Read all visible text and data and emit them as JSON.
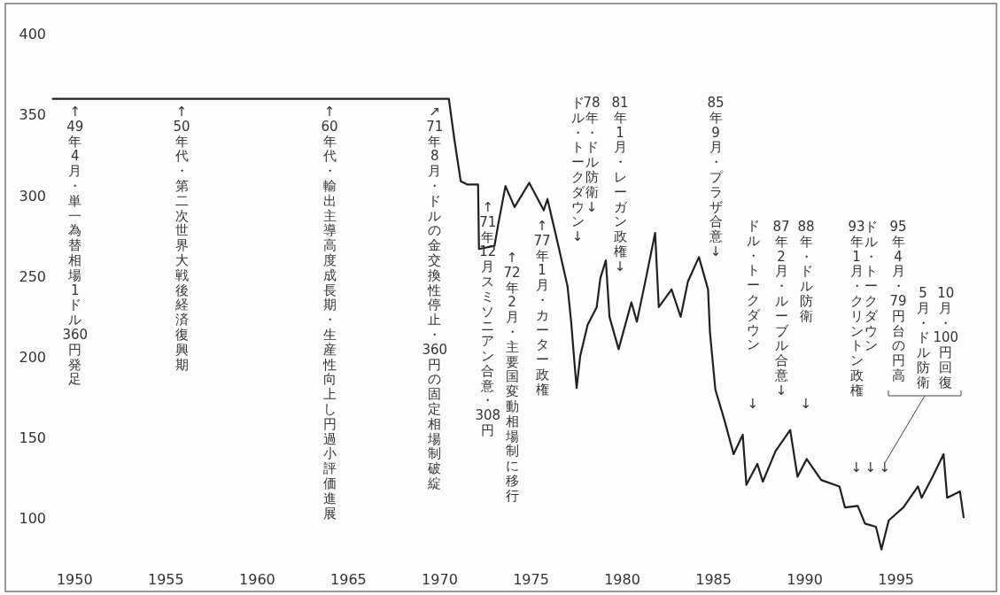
{
  "chart_data": {
    "type": "line",
    "color": "#231f20",
    "xlim": [
      1946.2,
      2000.5
    ],
    "ylim": [
      55,
      419
    ],
    "xticks": [
      1950,
      1955,
      1960,
      1965,
      1970,
      1975,
      1980,
      1985,
      1990,
      1995
    ],
    "yticks": [
      100,
      150,
      200,
      250,
      300,
      350,
      400
    ],
    "grid": false,
    "x": [
      1948.8,
      1970.5,
      1970.8,
      1971.15,
      1971.5,
      1972.1,
      1972.15,
      1973.0,
      1973.2,
      1973.6,
      1974.1,
      1974.9,
      1975.7,
      1975.9,
      1976.5,
      1977.0,
      1977.2,
      1977.4,
      1977.5,
      1977.7,
      1978.1,
      1978.6,
      1978.8,
      1979.1,
      1979.3,
      1979.8,
      1980.5,
      1980.8,
      1981.3,
      1981.8,
      1982.0,
      1982.7,
      1983.2,
      1983.6,
      1984.2,
      1984.7,
      1984.8,
      1985.1,
      1985.6,
      1986.1,
      1986.6,
      1986.8,
      1987.4,
      1987.7,
      1988.4,
      1989.2,
      1989.6,
      1990.1,
      1990.9,
      1991.9,
      1992.2,
      1992.9,
      1993.3,
      1993.9,
      1994.2,
      1994.6,
      1995.4,
      1996.2,
      1996.4,
      1997.0,
      1997.6,
      1997.8,
      1998.5,
      1998.7
    ],
    "values": [
      360,
      360,
      335,
      309,
      307,
      307,
      267,
      269,
      282,
      306,
      293,
      308,
      291,
      298,
      269,
      244,
      222,
      194,
      181,
      201,
      220,
      231,
      249,
      260,
      225,
      205,
      234,
      222,
      249,
      277,
      231,
      242,
      225,
      247,
      262,
      242,
      216,
      180,
      161,
      140,
      152,
      121,
      134,
      123,
      142,
      155,
      126,
      137,
      124,
      120,
      107,
      108,
      97,
      95,
      81,
      99,
      107,
      120,
      113,
      126,
      140,
      113,
      117,
      101
    ],
    "annotations": [
      "↑49年4月・単一為替相場1ドル360円発足",
      "↑50年代・第二次世界大戦後経済復興期",
      "↑60年代・輸出主導高度成長期・生産性向上し円過小評価進展",
      "↗71年8月・ドルの金交換性停止・360円の固定相場制破綻",
      "↑71年12月スミソニアン合意・308円",
      "↑72年2月・主要国変動相場制に移行",
      "↑77年1月・カーター政権",
      "ドル・トークダウン↓",
      "78年・ドル防衛↓",
      "81年1月・レーガン政権↓",
      "85年9月・プラザ合意↓",
      "ドル・トークダウン",
      "↓",
      "87年2月・ルーブル合意↓",
      "88年・ドル防衛",
      "↓",
      "93年1月・クリントン政権",
      "ドル・トークダウン",
      "95年4月・79円台の円高",
      "5月・ドル防衛",
      "10月・100円回復",
      "↓",
      "↓",
      "↓"
    ]
  }
}
